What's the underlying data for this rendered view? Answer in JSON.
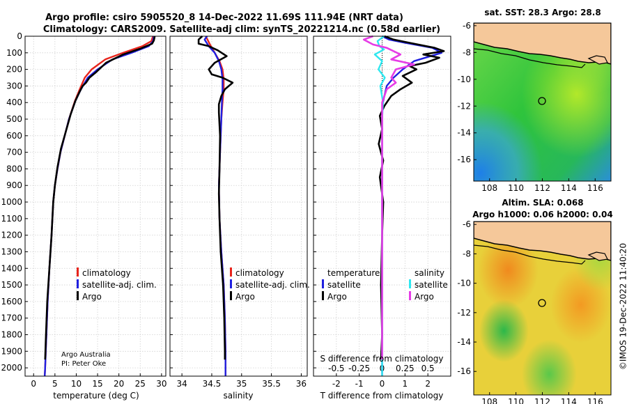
{
  "title_line1": "Argo profile: csiro 5905520_8 14-Dec-2022 11.69S 111.94E (NRT data)",
  "title_line2": "Climatology: CARS2009. Satellite-adj clim: synTS_20221214.nc (0.58d earlier)",
  "credit": "Argo Australia",
  "pi": "PI: Peter Oke",
  "watermark": "©IMOS 19-Dec-2022 11:40:20",
  "colors": {
    "climatology": "#e8241c",
    "satellite": "#1f1fe0",
    "argo": "#000000",
    "sat_temp": "#2ee8f0",
    "argo_sal_diff": "#e63ce6"
  },
  "depth_axis": {
    "ylim": [
      0,
      2050
    ],
    "ticks": [
      0,
      100,
      200,
      300,
      400,
      500,
      600,
      700,
      800,
      900,
      1000,
      1100,
      1200,
      1300,
      1400,
      1500,
      1600,
      1700,
      1800,
      1900,
      2000
    ]
  },
  "chart_data": [
    {
      "type": "line",
      "name": "temperature",
      "xlabel": "temperature (deg C)",
      "xlim": [
        -2,
        31
      ],
      "xticks": [
        0,
        5,
        10,
        15,
        20,
        25,
        30
      ],
      "legend": [
        "climatology",
        "satellite-adj. clim.",
        "Argo"
      ],
      "series": [
        {
          "name": "climatology",
          "color": "#e8241c",
          "points": [
            [
              28,
              0
            ],
            [
              27.6,
              30
            ],
            [
              25.5,
              60
            ],
            [
              21,
              100
            ],
            [
              16.8,
              140
            ],
            [
              13.6,
              200
            ],
            [
              12,
              250
            ],
            [
              10.8,
              320
            ],
            [
              9.7,
              390
            ],
            [
              8.3,
              500
            ],
            [
              7.3,
              600
            ],
            [
              6.3,
              700
            ],
            [
              5.6,
              800
            ],
            [
              5,
              900
            ],
            [
              4.6,
              1000
            ],
            [
              4.2,
              1200
            ],
            [
              3.7,
              1400
            ],
            [
              3.3,
              1600
            ],
            [
              3,
              1800
            ],
            [
              2.7,
              2000
            ],
            [
              2.6,
              2050
            ]
          ]
        },
        {
          "name": "satellite-adj. clim.",
          "color": "#1f1fe0",
          "points": [
            [
              28.2,
              0
            ],
            [
              28,
              30
            ],
            [
              27,
              60
            ],
            [
              23,
              100
            ],
            [
              18.5,
              140
            ],
            [
              15,
              200
            ],
            [
              12.7,
              250
            ],
            [
              11.1,
              320
            ],
            [
              9.8,
              390
            ],
            [
              8.3,
              500
            ],
            [
              7.3,
              600
            ],
            [
              6.3,
              700
            ],
            [
              5.6,
              800
            ],
            [
              5,
              900
            ],
            [
              4.6,
              1000
            ],
            [
              4.2,
              1200
            ],
            [
              3.7,
              1400
            ],
            [
              3.3,
              1600
            ],
            [
              3,
              1800
            ],
            [
              2.7,
              2000
            ],
            [
              2.6,
              2050
            ]
          ]
        },
        {
          "name": "Argo",
          "color": "#000000",
          "points": [
            [
              28.4,
              0
            ],
            [
              28.2,
              25
            ],
            [
              27.8,
              45
            ],
            [
              25,
              75
            ],
            [
              21,
              110
            ],
            [
              17,
              160
            ],
            [
              14.5,
              220
            ],
            [
              13.1,
              250
            ],
            [
              12.3,
              280
            ],
            [
              11.5,
              300
            ],
            [
              10.7,
              340
            ],
            [
              9.8,
              390
            ],
            [
              8.7,
              470
            ],
            [
              7.6,
              570
            ],
            [
              6.4,
              680
            ],
            [
              5.6,
              790
            ],
            [
              5,
              900
            ],
            [
              4.6,
              1000
            ],
            [
              4.2,
              1200
            ],
            [
              3.7,
              1400
            ],
            [
              3.2,
              1600
            ],
            [
              2.9,
              1800
            ],
            [
              2.7,
              1950
            ]
          ]
        }
      ]
    },
    {
      "type": "line",
      "name": "salinity",
      "xlabel": "salinity",
      "xlim": [
        33.8,
        36.1
      ],
      "xticks": [
        34,
        34.5,
        35,
        35.5,
        36
      ],
      "legend": [
        "climatology",
        "satellite-adj. clim.",
        "Argo"
      ],
      "series": [
        {
          "name": "climatology",
          "color": "#e8241c",
          "points": [
            [
              34.4,
              0
            ],
            [
              34.47,
              50
            ],
            [
              34.55,
              100
            ],
            [
              34.63,
              150
            ],
            [
              34.68,
              200
            ],
            [
              34.7,
              260
            ],
            [
              34.7,
              320
            ],
            [
              34.68,
              400
            ],
            [
              34.66,
              500
            ],
            [
              34.64,
              700
            ],
            [
              34.62,
              900
            ],
            [
              34.63,
              1100
            ],
            [
              34.66,
              1300
            ],
            [
              34.7,
              1500
            ],
            [
              34.72,
              1700
            ],
            [
              34.73,
              1900
            ],
            [
              34.73,
              2050
            ]
          ]
        },
        {
          "name": "satellite-adj. clim.",
          "color": "#1f1fe0",
          "points": [
            [
              34.42,
              0
            ],
            [
              34.38,
              20
            ],
            [
              34.45,
              60
            ],
            [
              34.55,
              100
            ],
            [
              34.62,
              150
            ],
            [
              34.66,
              200
            ],
            [
              34.68,
              260
            ],
            [
              34.68,
              320
            ],
            [
              34.67,
              400
            ],
            [
              34.66,
              500
            ],
            [
              34.64,
              700
            ],
            [
              34.62,
              900
            ],
            [
              34.63,
              1100
            ],
            [
              34.66,
              1300
            ],
            [
              34.7,
              1500
            ],
            [
              34.72,
              1700
            ],
            [
              34.73,
              1900
            ],
            [
              34.73,
              2050
            ]
          ]
        },
        {
          "name": "Argo",
          "color": "#000000",
          "points": [
            [
              34.34,
              0
            ],
            [
              34.28,
              20
            ],
            [
              34.28,
              45
            ],
            [
              34.45,
              60
            ],
            [
              34.6,
              85
            ],
            [
              34.75,
              120
            ],
            [
              34.55,
              160
            ],
            [
              34.45,
              200
            ],
            [
              34.5,
              230
            ],
            [
              34.68,
              250
            ],
            [
              34.85,
              280
            ],
            [
              34.72,
              320
            ],
            [
              34.66,
              360
            ],
            [
              34.62,
              410
            ],
            [
              34.62,
              460
            ],
            [
              34.64,
              600
            ],
            [
              34.63,
              800
            ],
            [
              34.62,
              950
            ],
            [
              34.63,
              1100
            ],
            [
              34.65,
              1300
            ],
            [
              34.69,
              1500
            ],
            [
              34.71,
              1700
            ],
            [
              34.72,
              1900
            ],
            [
              34.72,
              1950
            ]
          ]
        }
      ]
    },
    {
      "type": "line",
      "name": "differences",
      "xlabel": "T difference from climatology",
      "xlim": [
        -3,
        3
      ],
      "xticks": [
        -2,
        -1,
        0,
        1,
        2
      ],
      "top_xlabel": "S difference from climatology",
      "top_xticks": [
        -0.5,
        -0.25,
        0,
        0.25,
        0.5
      ],
      "top_xlim": [
        -0.75,
        0.75
      ],
      "legend_temperature_title": "temperature",
      "legend_salinity_title": "salinity",
      "legend_temperature": [
        "satellite",
        "Argo"
      ],
      "legend_salinity": [
        "satellite",
        "Argo"
      ],
      "series": [
        {
          "name": "T satellite",
          "color": "#1f1fe0",
          "points": [
            [
              0,
              0
            ],
            [
              0.3,
              20
            ],
            [
              1,
              40
            ],
            [
              2.2,
              70
            ],
            [
              2.6,
              100
            ],
            [
              1.4,
              150
            ],
            [
              0.9,
              200
            ],
            [
              0.5,
              250
            ],
            [
              0.2,
              300
            ],
            [
              0.05,
              390
            ],
            [
              0,
              450
            ],
            [
              0,
              2050
            ]
          ]
        },
        {
          "name": "T Argo",
          "color": "#000000",
          "points": [
            [
              0.1,
              0
            ],
            [
              0.5,
              20
            ],
            [
              1.2,
              40
            ],
            [
              2.3,
              70
            ],
            [
              2.7,
              90
            ],
            [
              1.8,
              110
            ],
            [
              2.5,
              130
            ],
            [
              1.9,
              160
            ],
            [
              1.2,
              180
            ],
            [
              1.5,
              200
            ],
            [
              0.9,
              240
            ],
            [
              1.3,
              280
            ],
            [
              0.8,
              320
            ],
            [
              0.4,
              360
            ],
            [
              0.1,
              420
            ],
            [
              -0.1,
              480
            ],
            [
              0,
              560
            ],
            [
              -0.15,
              650
            ],
            [
              0.05,
              750
            ],
            [
              -0.1,
              850
            ],
            [
              0.05,
              1000
            ],
            [
              0,
              1200
            ],
            [
              -0.05,
              1500
            ],
            [
              0,
              1800
            ],
            [
              -0.05,
              1950
            ]
          ]
        },
        {
          "name": "S satellite",
          "color": "#2ee8f0",
          "points": [
            [
              0.02,
              0
            ],
            [
              -0.05,
              30
            ],
            [
              -0.03,
              60
            ],
            [
              0.02,
              80
            ],
            [
              -0.08,
              110
            ],
            [
              0,
              150
            ],
            [
              -0.04,
              200
            ],
            [
              0.03,
              250
            ],
            [
              -0.02,
              300
            ],
            [
              0.01,
              400
            ],
            [
              0,
              500
            ],
            [
              0,
              2050
            ]
          ]
        },
        {
          "name": "S Argo",
          "color": "#e63ce6",
          "points": [
            [
              -0.1,
              0
            ],
            [
              -0.2,
              20
            ],
            [
              -0.1,
              50
            ],
            [
              0.05,
              70
            ],
            [
              0.2,
              110
            ],
            [
              0.1,
              140
            ],
            [
              0.35,
              170
            ],
            [
              0.15,
              200
            ],
            [
              0.1,
              250
            ],
            [
              0.15,
              280
            ],
            [
              0.05,
              320
            ],
            [
              0,
              400
            ],
            [
              0,
              500
            ],
            [
              0,
              600
            ],
            [
              0,
              800
            ],
            [
              0,
              1000
            ],
            [
              0,
              1500
            ],
            [
              0,
              1950
            ]
          ]
        }
      ]
    },
    {
      "type": "heatmap",
      "name": "sst_map",
      "title": "sat. SST: 28.3 Argo: 28.8",
      "xlim": [
        106.8,
        117.2
      ],
      "ylim": [
        -17.6,
        -5.8
      ],
      "xticks": [
        108,
        110,
        112,
        114,
        116
      ],
      "yticks": [
        -6,
        -8,
        -10,
        -12,
        -14,
        -16
      ],
      "float": [
        111.94,
        -11.69
      ]
    },
    {
      "type": "heatmap",
      "name": "sla_map",
      "title_line1": "Altim. SLA: 0.068",
      "title_line2": "Argo h1000: 0.06 h2000: 0.04",
      "xlim": [
        106.8,
        117.2
      ],
      "ylim": [
        -17.6,
        -5.8
      ],
      "xticks": [
        108,
        110,
        112,
        114,
        116
      ],
      "yticks": [
        -6,
        -8,
        -10,
        -12,
        -14,
        -16
      ],
      "float": [
        111.94,
        -11.69
      ]
    }
  ]
}
